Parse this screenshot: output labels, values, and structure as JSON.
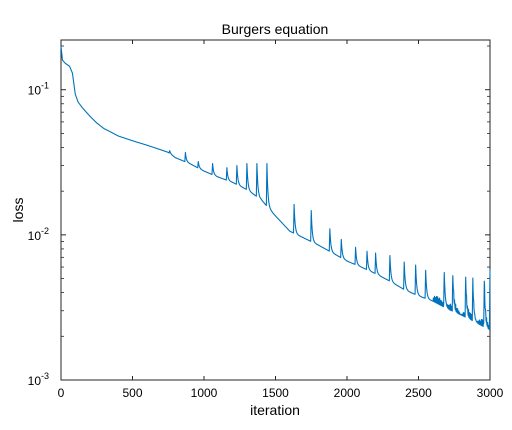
{
  "chart_data": {
    "type": "line",
    "title": "Burgers equation",
    "xlabel": "iteration",
    "ylabel": "loss",
    "xlim": [
      0,
      3000
    ],
    "ylim": [
      0.001,
      0.22
    ],
    "yscale": "log",
    "grid": false,
    "legend": "none",
    "x_ticks": [
      "0",
      "500",
      "1000",
      "1500",
      "2000",
      "2500",
      "3000"
    ],
    "x_tick_values": [
      0,
      500,
      1000,
      1500,
      2000,
      2500,
      3000
    ],
    "y_ticks": [
      {
        "base": "10",
        "exp": "-1",
        "value": 0.1
      },
      {
        "base": "10",
        "exp": "-2",
        "value": 0.01
      },
      {
        "base": "10",
        "exp": "-3",
        "value": 0.001
      }
    ],
    "series": [
      {
        "color": "#0072BD",
        "baseline": [
          [
            0,
            0.2
          ],
          [
            10,
            0.16
          ],
          [
            30,
            0.152
          ],
          [
            60,
            0.145
          ],
          [
            80,
            0.13
          ],
          [
            100,
            0.093
          ],
          [
            120,
            0.082
          ],
          [
            150,
            0.075
          ],
          [
            200,
            0.066
          ],
          [
            250,
            0.059
          ],
          [
            300,
            0.054
          ],
          [
            350,
            0.051
          ],
          [
            400,
            0.048
          ],
          [
            500,
            0.0445
          ],
          [
            600,
            0.0415
          ],
          [
            700,
            0.0385
          ],
          [
            750,
            0.037
          ],
          [
            800,
            0.034
          ],
          [
            900,
            0.031
          ],
          [
            1000,
            0.0275
          ],
          [
            1100,
            0.025
          ],
          [
            1200,
            0.023
          ],
          [
            1300,
            0.0205
          ],
          [
            1400,
            0.0175
          ],
          [
            1500,
            0.0135
          ],
          [
            1600,
            0.0106
          ],
          [
            1700,
            0.0095
          ],
          [
            1800,
            0.0085
          ],
          [
            1900,
            0.0075
          ],
          [
            2000,
            0.0066
          ],
          [
            2100,
            0.006
          ],
          [
            2200,
            0.0054
          ],
          [
            2300,
            0.0048
          ],
          [
            2400,
            0.0042
          ],
          [
            2500,
            0.0038
          ],
          [
            2600,
            0.0035
          ],
          [
            2700,
            0.0031
          ],
          [
            2800,
            0.0028
          ],
          [
            2900,
            0.0025
          ],
          [
            3000,
            0.0022
          ]
        ],
        "spikes": [
          [
            760,
            0.038
          ],
          [
            870,
            0.037
          ],
          [
            960,
            0.032
          ],
          [
            1060,
            0.031
          ],
          [
            1160,
            0.029
          ],
          [
            1230,
            0.03
          ],
          [
            1300,
            0.031
          ],
          [
            1370,
            0.031
          ],
          [
            1440,
            0.031
          ],
          [
            1630,
            0.0162
          ],
          [
            1750,
            0.0147
          ],
          [
            1880,
            0.011
          ],
          [
            1960,
            0.0093
          ],
          [
            2060,
            0.0082
          ],
          [
            2140,
            0.0077
          ],
          [
            2200,
            0.0075
          ],
          [
            2300,
            0.0072
          ],
          [
            2400,
            0.0065
          ],
          [
            2480,
            0.0062
          ],
          [
            2550,
            0.0057
          ],
          [
            2680,
            0.0055
          ],
          [
            2740,
            0.0052
          ],
          [
            2830,
            0.005
          ],
          [
            2880,
            0.0048
          ],
          [
            2960,
            0.0048
          ],
          [
            3000,
            0.0058
          ]
        ],
        "noise_start": 2600
      }
    ]
  }
}
